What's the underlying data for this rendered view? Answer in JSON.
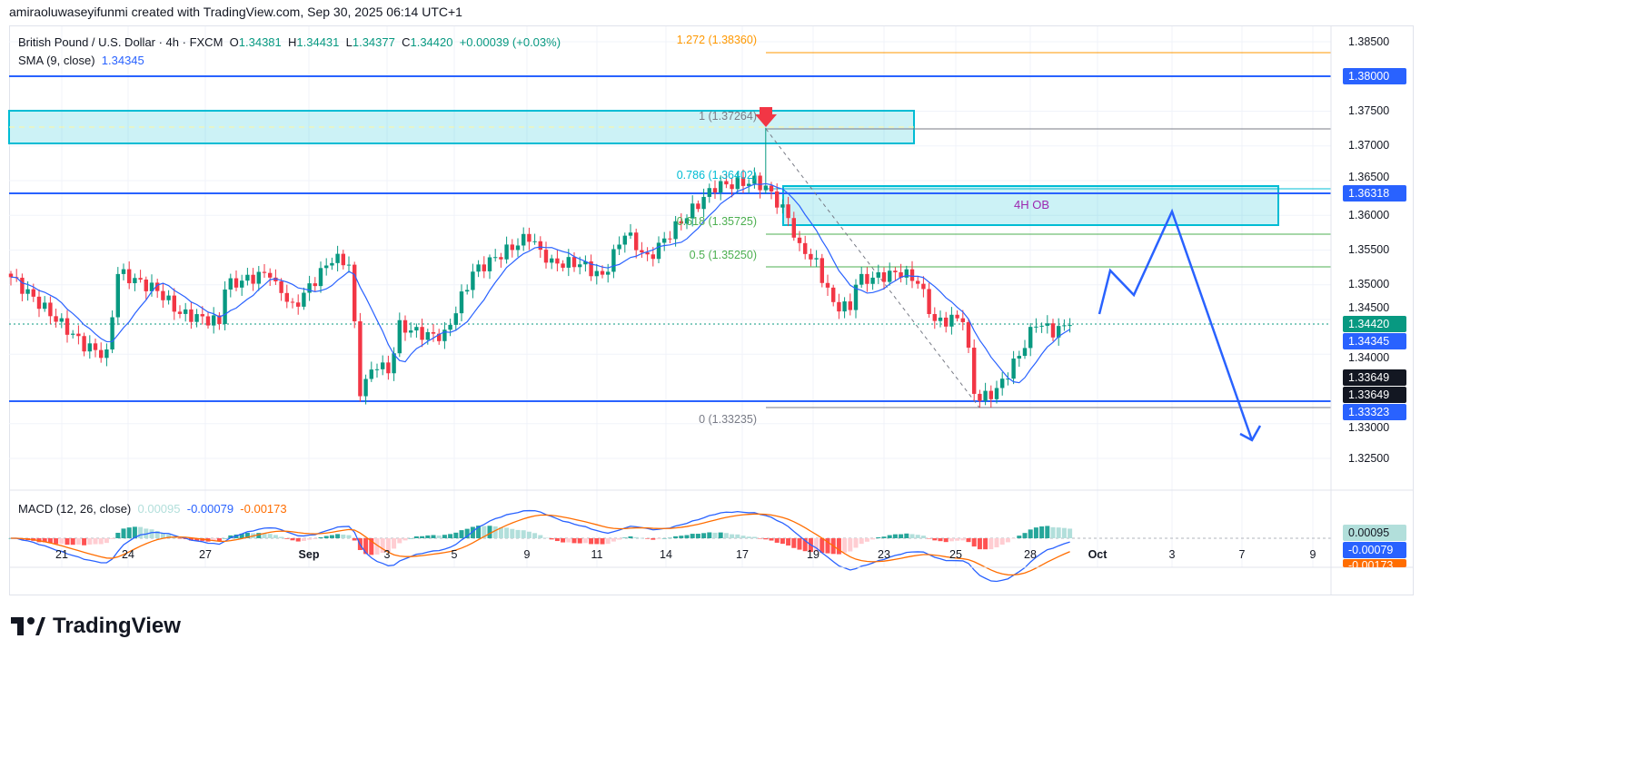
{
  "credit": "amiraoluwaseyifunmi created with TradingView.com, Sep 30, 2025 06:14 UTC+1",
  "legend": {
    "symbol": "British Pound / U.S. Dollar · 4h · FXCM",
    "o_label": "O",
    "o": "1.34381",
    "h_label": "H",
    "h": "1.34431",
    "l_label": "L",
    "l": "1.34377",
    "c_label": "C",
    "c": "1.34420",
    "change": "+0.00039 (+0.03%)",
    "sma_label": "SMA (9, close)",
    "sma": "1.34345"
  },
  "macd": {
    "label": "MACD (12, 26, close)",
    "hist": "0.00095",
    "macd": "-0.00079",
    "signal": "-0.00173"
  },
  "colors": {
    "up": "#089981",
    "down": "#f23645",
    "blue": "#2962ff",
    "orange": "#ff9800",
    "zone": "#00bcd4"
  },
  "axis": {
    "ticks": [
      "1.38500",
      "1.37500",
      "1.37000",
      "1.36500",
      "1.36000",
      "1.35500",
      "1.35000",
      "1.34500",
      "1.34000",
      "1.33000",
      "1.32500"
    ],
    "labels": {
      "res_top": "1.38000",
      "res_mid": "1.36318",
      "price": "1.34420",
      "sma": "1.34345",
      "l1": "1.33649",
      "l2": "1.33649",
      "support": "1.33323",
      "macd_hist": "0.00095",
      "macd_line": "-0.00079",
      "macd_signal": "-0.00173"
    }
  },
  "dates": [
    "21",
    "24",
    "27",
    "Sep",
    "3",
    "5",
    "9",
    "11",
    "14",
    "17",
    "19",
    "23",
    "25",
    "28",
    "Oct",
    "3",
    "7",
    "9"
  ],
  "fib": {
    "ext": "1.272 (1.38360)",
    "l1": "1 (1.37264)",
    "l786": "0.786 (1.36402)",
    "l618": "0.618 (1.35725)",
    "l5": "0.5 (1.35250)",
    "l0": "0 (1.33235)"
  },
  "zone_label": "4H OB",
  "logo": "TradingView",
  "chart_data": {
    "type": "candlestick",
    "symbol": "GBPUSD",
    "timeframe": "4h",
    "close_waypoints": [
      [
        0,
        1.3511
      ],
      [
        13,
        1.3413
      ],
      [
        17,
        1.3398
      ],
      [
        19,
        1.3518
      ],
      [
        26,
        1.3492
      ],
      [
        30,
        1.3459
      ],
      [
        37,
        1.3446
      ],
      [
        38,
        1.3498
      ],
      [
        46,
        1.3518
      ],
      [
        50,
        1.3466
      ],
      [
        57,
        1.3538
      ],
      [
        60,
        1.3531
      ],
      [
        62,
        1.3348
      ],
      [
        65,
        1.3387
      ],
      [
        67,
        1.3374
      ],
      [
        69,
        1.344
      ],
      [
        74,
        1.3427
      ],
      [
        77,
        1.3427
      ],
      [
        82,
        1.3518
      ],
      [
        92,
        1.357
      ],
      [
        96,
        1.3531
      ],
      [
        101,
        1.3531
      ],
      [
        105,
        1.3511
      ],
      [
        109,
        1.3576
      ],
      [
        113,
        1.3537
      ],
      [
        118,
        1.3583
      ],
      [
        125,
        1.3642
      ],
      [
        132,
        1.3649
      ],
      [
        134,
        1.364
      ],
      [
        136,
        1.362
      ],
      [
        138,
        1.3597
      ],
      [
        140,
        1.3551
      ],
      [
        143,
        1.3531
      ],
      [
        146,
        1.3472
      ],
      [
        149,
        1.3466
      ],
      [
        150,
        1.3505
      ],
      [
        158,
        1.3518
      ],
      [
        161,
        1.3505
      ],
      [
        164,
        1.3446
      ],
      [
        169,
        1.3453
      ],
      [
        171,
        1.3348
      ],
      [
        172,
        1.3335
      ],
      [
        175,
        1.3348
      ],
      [
        179,
        1.3399
      ],
      [
        182,
        1.3446
      ],
      [
        185,
        1.3433
      ],
      [
        188,
        1.3442
      ]
    ],
    "ylim": [
      1.32,
      1.388
    ]
  }
}
